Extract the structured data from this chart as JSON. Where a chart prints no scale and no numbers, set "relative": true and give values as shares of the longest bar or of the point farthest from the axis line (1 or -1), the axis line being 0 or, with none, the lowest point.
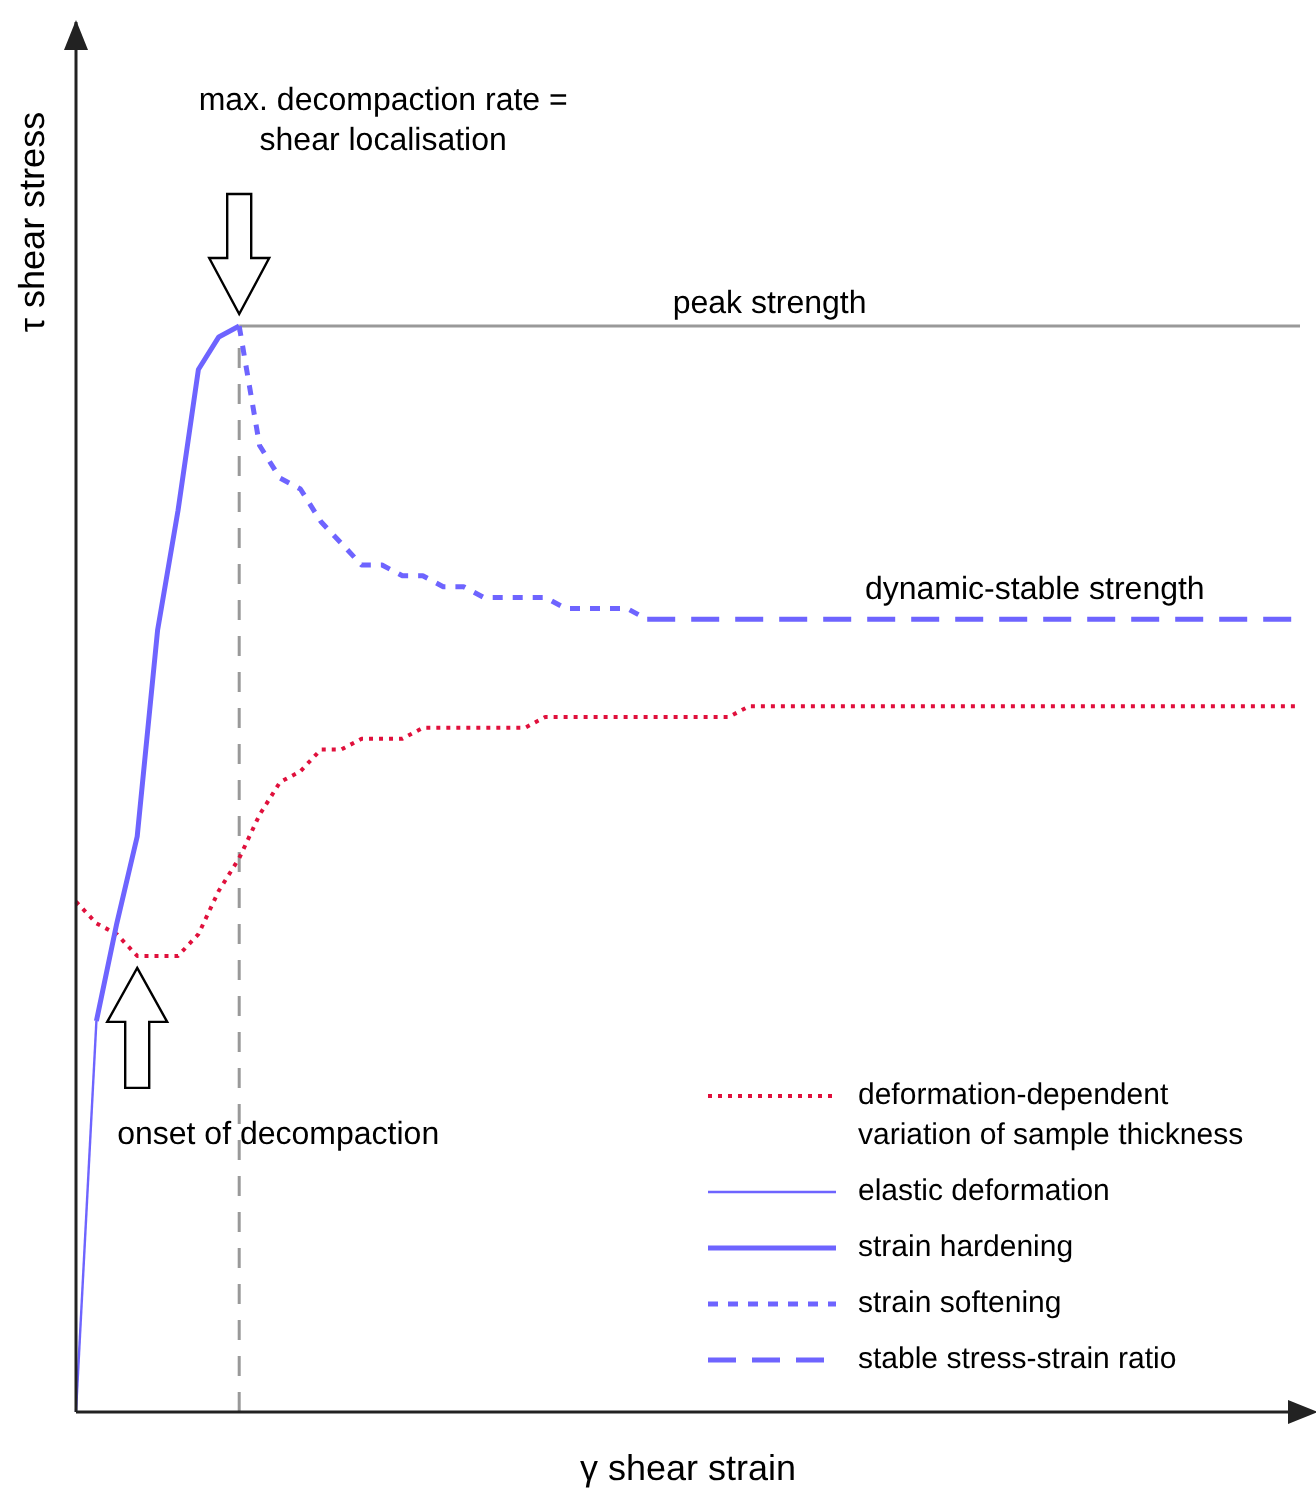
{
  "chart_data": {
    "type": "line",
    "relative": true,
    "xlabel": "γ  shear strain",
    "ylabel": "τ  shear stress",
    "ylim": [
      0,
      1.28
    ],
    "legend": "bottom right",
    "marker": "none",
    "categories": [
      null,
      null,
      null,
      null,
      null,
      null,
      null,
      null,
      null,
      null,
      null,
      null,
      null,
      null,
      null,
      null,
      null,
      null,
      null,
      null,
      null,
      null,
      null,
      null,
      null,
      null,
      null,
      null,
      null,
      null,
      null,
      null,
      null,
      null,
      null,
      null,
      null,
      null,
      null,
      null,
      null,
      null,
      null,
      null,
      null,
      null,
      null,
      null,
      null,
      null,
      null,
      null,
      null,
      null,
      null,
      null,
      null,
      null,
      null,
      null,
      null
    ],
    "series": [
      {
        "name": "deformation-dependent variation of sample thickness",
        "color": "#e0103c",
        "line_style": "dotted",
        "values": [
          0.47,
          0.45,
          0.44,
          0.42,
          0.42,
          0.42,
          0.44,
          0.48,
          0.51,
          0.55,
          0.58,
          0.59,
          0.61,
          0.61,
          0.62,
          0.62,
          0.62,
          0.63,
          0.63,
          0.63,
          0.63,
          0.63,
          0.63,
          0.64,
          0.64,
          0.64,
          0.64,
          0.64,
          0.64,
          0.64,
          0.64,
          0.64,
          0.64,
          0.65,
          0.65,
          0.65,
          0.65,
          0.65,
          0.65,
          0.65,
          0.65,
          0.65,
          0.65,
          0.65,
          0.65,
          0.65,
          0.65,
          0.65,
          0.65,
          0.65,
          0.65,
          0.65,
          0.65,
          0.65,
          0.65,
          0.65,
          0.65,
          0.65,
          0.65,
          0.65,
          0.65
        ]
      },
      {
        "name": "elastic deformation",
        "color": "#6e64ff",
        "line_style": "solid",
        "values": [
          0,
          0.36,
          null,
          null,
          null,
          null,
          null,
          null,
          null,
          null,
          null,
          null,
          null,
          null,
          null,
          null,
          null,
          null,
          null,
          null,
          null,
          null,
          null,
          null,
          null,
          null,
          null,
          null,
          null,
          null,
          null,
          null,
          null,
          null,
          null,
          null,
          null,
          null,
          null,
          null,
          null,
          null,
          null,
          null,
          null,
          null,
          null,
          null,
          null,
          null,
          null,
          null,
          null,
          null,
          null,
          null,
          null,
          null,
          null,
          null,
          null
        ]
      },
      {
        "name": "strain hardening",
        "color": "#6e64ff",
        "line_style": "solid",
        "values": [
          null,
          0.36,
          0.45,
          0.53,
          0.72,
          0.83,
          0.96,
          0.99,
          1,
          null,
          null,
          null,
          null,
          null,
          null,
          null,
          null,
          null,
          null,
          null,
          null,
          null,
          null,
          null,
          null,
          null,
          null,
          null,
          null,
          null,
          null,
          null,
          null,
          null,
          null,
          null,
          null,
          null,
          null,
          null,
          null,
          null,
          null,
          null,
          null,
          null,
          null,
          null,
          null,
          null,
          null,
          null,
          null,
          null,
          null,
          null,
          null,
          null,
          null,
          null,
          null
        ]
      },
      {
        "name": "strain softening",
        "color": "#6e64ff",
        "line_style": "dashed",
        "values": [
          null,
          null,
          null,
          null,
          null,
          null,
          null,
          null,
          1,
          0.89,
          0.86,
          0.85,
          0.82,
          0.8,
          0.78,
          0.78,
          0.77,
          0.77,
          0.76,
          0.76,
          0.75,
          0.75,
          0.75,
          0.75,
          0.74,
          0.74,
          0.74,
          0.74,
          0.73,
          null,
          null,
          null,
          null,
          null,
          null,
          null,
          null,
          null,
          null,
          null,
          null,
          null,
          null,
          null,
          null,
          null,
          null,
          null,
          null,
          null,
          null,
          null,
          null,
          null,
          null,
          null,
          null,
          null,
          null,
          null,
          null
        ]
      },
      {
        "name": "stable stress-strain ratio",
        "color": "#6e64ff",
        "line_style": "dashed",
        "values": [
          null,
          null,
          null,
          null,
          null,
          null,
          null,
          null,
          null,
          null,
          null,
          null,
          null,
          null,
          null,
          null,
          null,
          null,
          null,
          null,
          null,
          null,
          null,
          null,
          null,
          null,
          null,
          null,
          0.73,
          0.73,
          0.73,
          0.73,
          0.73,
          0.73,
          0.73,
          0.73,
          0.73,
          0.73,
          0.73,
          0.73,
          0.73,
          0.73,
          0.73,
          0.73,
          0.73,
          0.73,
          0.73,
          0.73,
          0.73,
          0.73,
          0.73,
          0.73,
          0.73,
          0.73,
          0.73,
          0.73,
          0.73,
          0.73,
          0.73,
          0.73,
          0.73
        ]
      }
    ],
    "ref_lines": [
      {
        "axis": "y",
        "value": 1,
        "label": "peak strength",
        "color": "#999999",
        "line_style": "solid"
      },
      {
        "axis": "x",
        "color": "#999999",
        "line_style": "dashed"
      }
    ],
    "annotations": [
      "max. decompaction rate = shear localisation",
      "onset of decompaction",
      "dynamic-stable strength"
    ]
  }
}
